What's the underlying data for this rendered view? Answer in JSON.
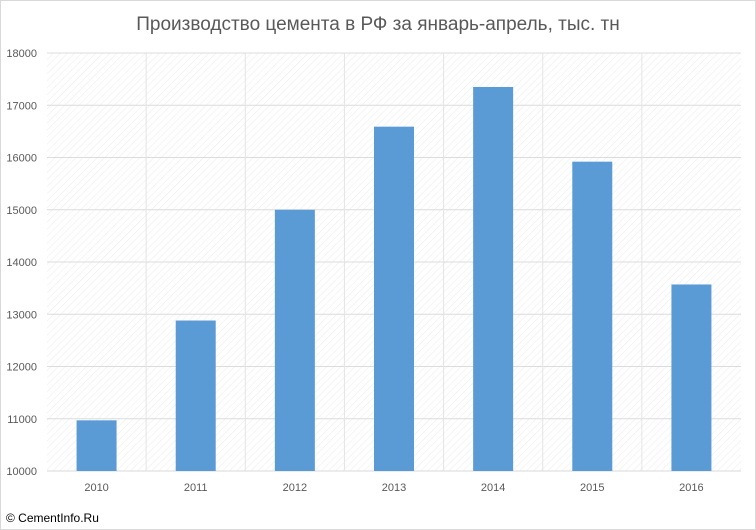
{
  "chart_data": {
    "type": "bar",
    "title": "Производство цемента в РФ за январь-апрель, тыс. тн",
    "categories": [
      "2010",
      "2011",
      "2012",
      "2013",
      "2014",
      "2015",
      "2016"
    ],
    "values": [
      10970,
      12880,
      15000,
      16590,
      17350,
      15920,
      13570
    ],
    "ylim": [
      10000,
      18000
    ],
    "yticks": [
      "10000",
      "11000",
      "12000",
      "13000",
      "14000",
      "15000",
      "16000",
      "17000",
      "18000"
    ],
    "xlabel": "",
    "ylabel": "",
    "grid": true,
    "legend": "none",
    "bar_color": "#5b9bd5"
  },
  "watermark": "© CementInfo.Ru"
}
